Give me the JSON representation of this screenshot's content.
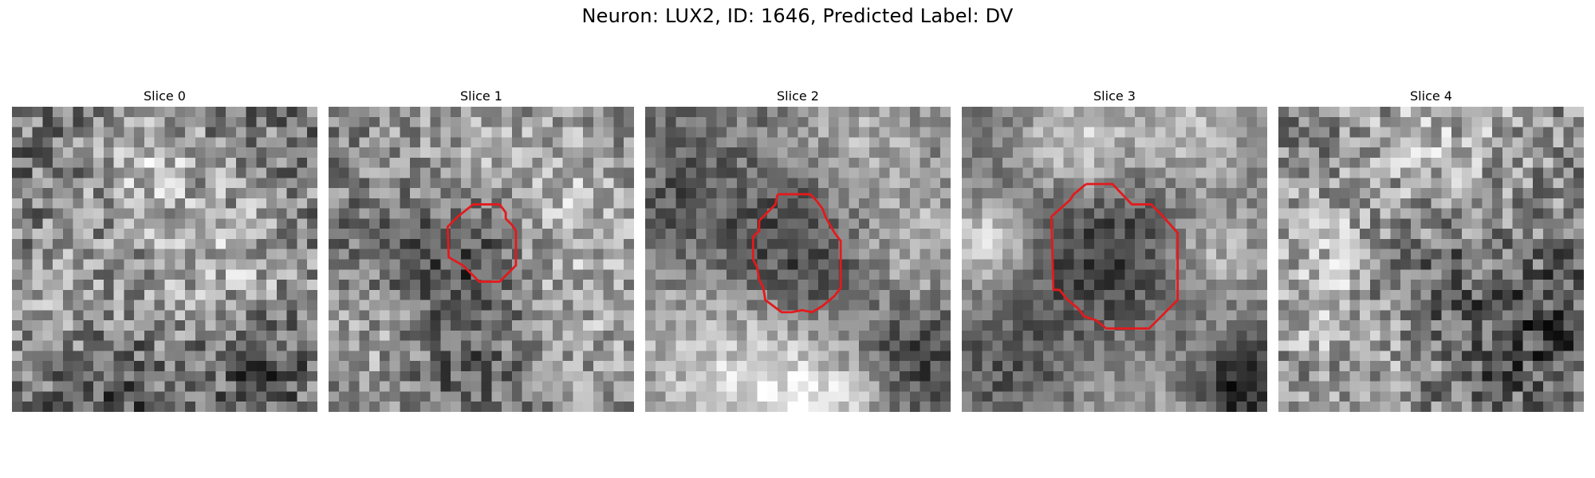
{
  "figure": {
    "title": "Neuron: LUX2, ID: 1646, Predicted Label: DV"
  },
  "colors": {
    "background": "#ffffff",
    "contour": "#e31a1c",
    "colormap": "grayscale"
  },
  "panels": [
    {
      "title": "Slice 0",
      "has_contour": false
    },
    {
      "title": "Slice 1",
      "has_contour": true
    },
    {
      "title": "Slice 2",
      "has_contour": true
    },
    {
      "title": "Slice 3",
      "has_contour": true
    },
    {
      "title": "Slice 4",
      "has_contour": false
    }
  ]
}
